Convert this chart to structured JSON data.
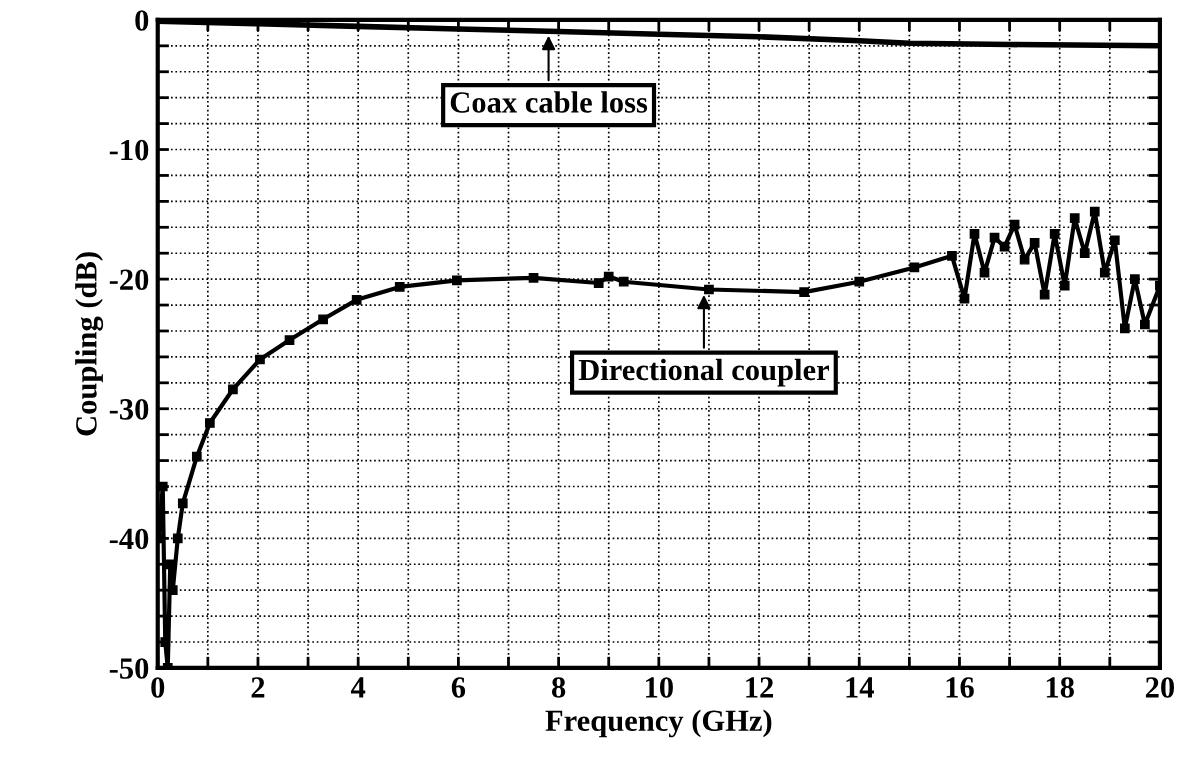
{
  "chart_data": {
    "type": "line",
    "xlabel": "Frequency (GHz)",
    "ylabel": "Coupling (dB)",
    "xlim": [
      0,
      20
    ],
    "ylim": [
      -50,
      0
    ],
    "xticks": [
      0,
      {
        "value": 1,
        "label": null
      },
      2,
      {
        "value": 3,
        "label": null
      },
      4,
      {
        "value": 5,
        "label": null
      },
      6,
      {
        "value": 7,
        "label": null
      },
      8,
      {
        "value": 9,
        "label": null
      },
      10,
      {
        "value": 11,
        "label": null
      },
      12,
      {
        "value": 13,
        "label": null
      },
      14,
      {
        "value": 15,
        "label": null
      },
      16,
      {
        "value": 17,
        "label": null
      },
      18,
      {
        "value": 19,
        "label": null
      },
      20
    ],
    "yticks": [
      -50,
      {
        "value": -48,
        "label": null
      },
      {
        "value": -46,
        "label": null
      },
      {
        "value": -44,
        "label": null
      },
      {
        "value": -42,
        "label": null
      },
      -40,
      {
        "value": -38,
        "label": null
      },
      {
        "value": -36,
        "label": null
      },
      {
        "value": -34,
        "label": null
      },
      {
        "value": -32,
        "label": null
      },
      -30,
      {
        "value": -28,
        "label": null
      },
      {
        "value": -26,
        "label": null
      },
      {
        "value": -24,
        "label": null
      },
      {
        "value": -22,
        "label": null
      },
      -20,
      {
        "value": -18,
        "label": null
      },
      {
        "value": -16,
        "label": null
      },
      {
        "value": -14,
        "label": null
      },
      {
        "value": -12,
        "label": null
      },
      -10,
      {
        "value": -8,
        "label": null
      },
      {
        "value": -6,
        "label": null
      },
      {
        "value": -4,
        "label": null
      },
      {
        "value": -2,
        "label": null
      },
      0
    ],
    "grid": true,
    "line_style": "solid",
    "series": [
      {
        "color": "#000000",
        "marker": "none",
        "x": [
          0,
          2,
          4,
          6,
          8,
          10,
          12,
          14,
          15,
          17,
          20
        ],
        "values": [
          -0.1,
          -0.3,
          -0.5,
          -0.7,
          -0.9,
          -1.1,
          -1.3,
          -1.6,
          -1.8,
          -1.9,
          -2.0
        ]
      },
      {
        "color": "#000000",
        "marker": "square",
        "x": [
          0.02,
          0.1,
          0.15,
          0.2,
          0.25,
          0.3,
          0.4,
          0.5,
          0.78,
          1.04,
          1.5,
          2.04,
          2.63,
          3.3,
          3.97,
          4.83,
          5.97,
          7.5,
          8.8,
          9.0,
          9.3,
          11.0,
          12.9,
          14.0,
          15.1,
          15.85,
          16.1,
          16.3,
          16.5,
          16.7,
          16.9,
          17.1,
          17.3,
          17.5,
          17.7,
          17.9,
          18.1,
          18.3,
          18.5,
          18.7,
          18.9,
          19.1,
          19.3,
          19.5,
          19.7,
          20.0
        ],
        "values": [
          -40,
          -36,
          -48,
          -50,
          -42,
          -44,
          -40,
          -37.3,
          -33.7,
          -31.1,
          -28.5,
          -26.2,
          -24.7,
          -23.1,
          -21.6,
          -20.6,
          -20.1,
          -19.9,
          -20.3,
          -19.8,
          -20.2,
          -20.8,
          -21.0,
          -20.2,
          -19.1,
          -18.2,
          -21.5,
          -16.5,
          -19.5,
          -16.8,
          -17.5,
          -15.8,
          -18.5,
          -17.2,
          -21.2,
          -16.5,
          -20.5,
          -15.3,
          -18.0,
          -14.8,
          -19.5,
          -17.0,
          -23.8,
          -20.0,
          -23.5,
          -20.5
        ]
      }
    ],
    "annotations": [
      {
        "text": "Coax cable loss",
        "x": 7.8,
        "y": -1.0
      },
      {
        "text": "Directional coupler",
        "x": 10.9,
        "y": -21.0
      }
    ]
  }
}
